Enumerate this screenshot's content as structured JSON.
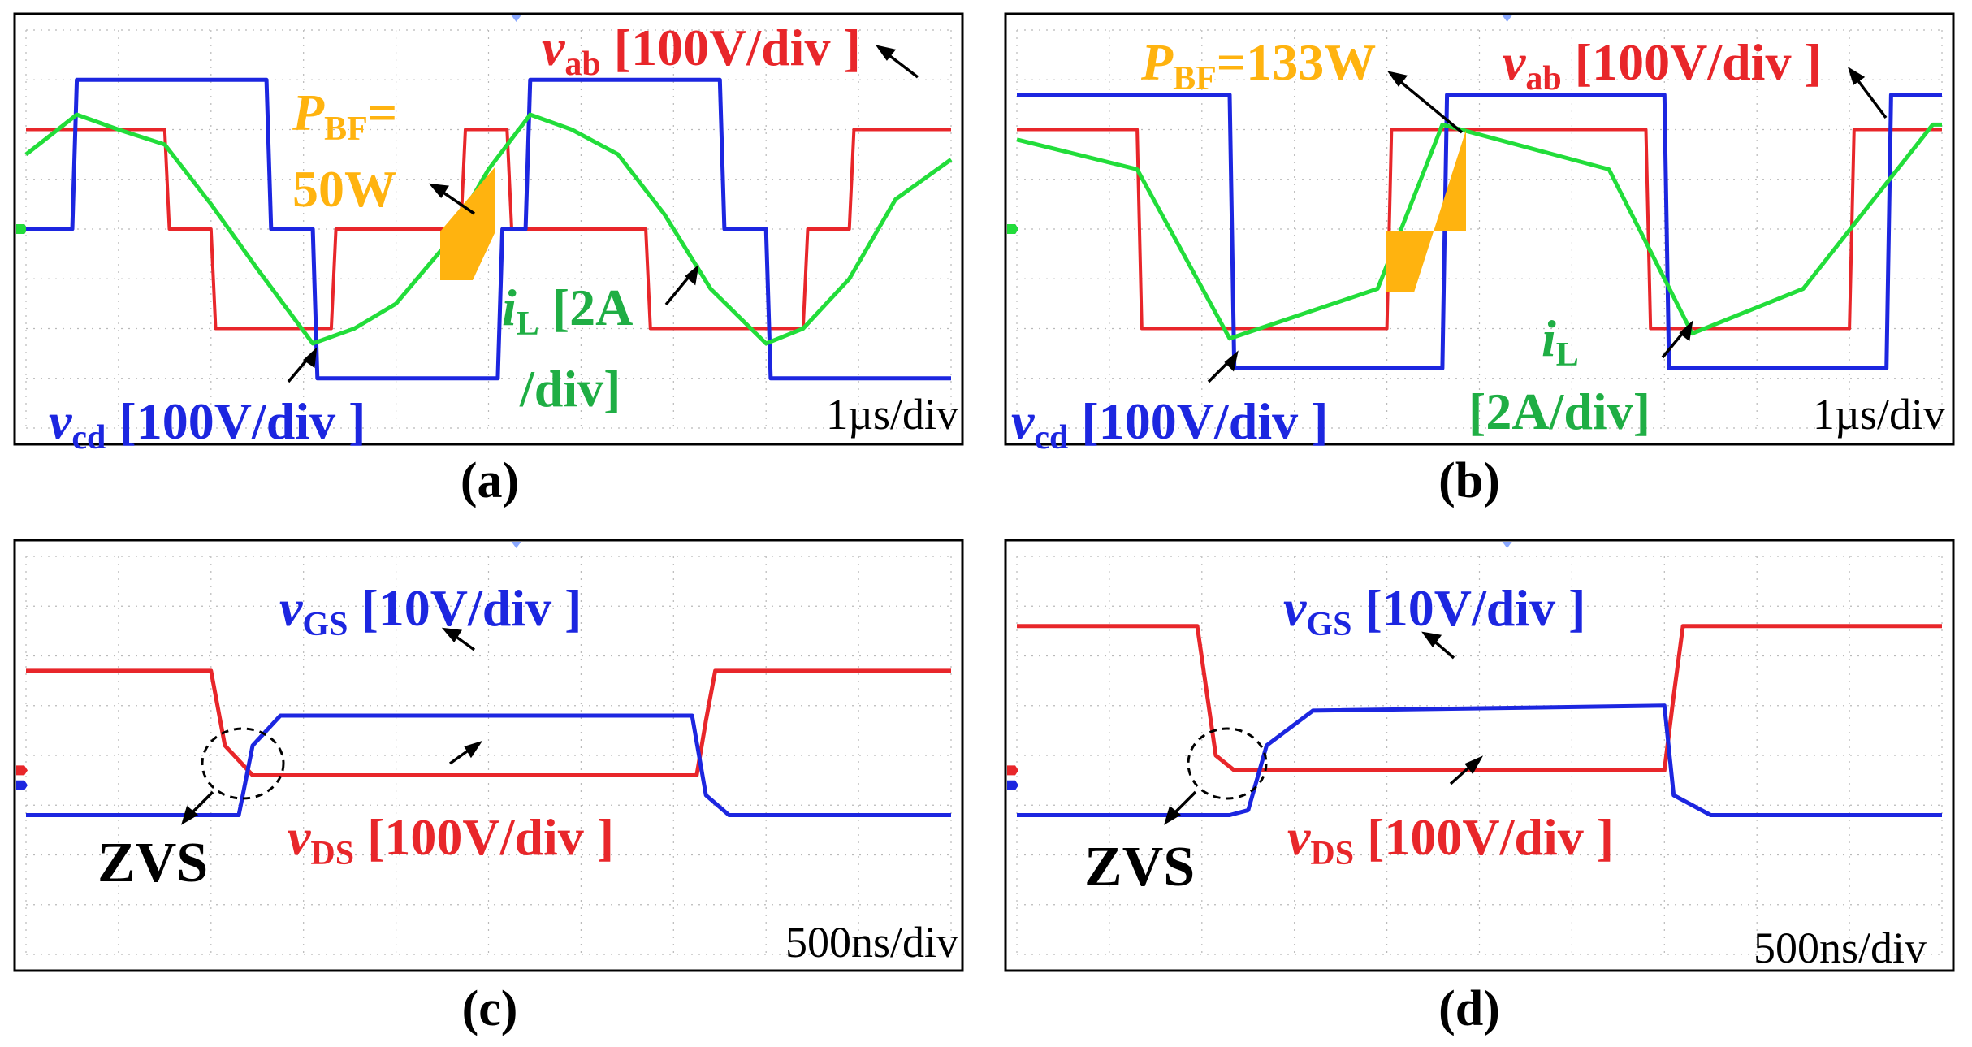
{
  "colors": {
    "vab": "#e8262a",
    "vcd": "#1c26e0",
    "iL": "#22dd3a",
    "iL_text": "#1fae44",
    "pbf": "#ffb30f",
    "black": "#000000",
    "grid": "#b9b9b9"
  },
  "panels": {
    "a": {
      "caption": "(a)",
      "timebase": "1µs/div",
      "vab_label": {
        "sym": "v",
        "sub": "ab",
        "scale": " [100V/div ]"
      },
      "vcd_label": {
        "sym": "v",
        "sub": "cd",
        "scale": " [100V/div ]"
      },
      "iL_label": {
        "sym": "i",
        "sub": "L",
        "scale": " [2A",
        "scale2": "/div]"
      },
      "pbf_label": {
        "sym": "P",
        "sub": "BF",
        "eq": "=",
        "value": "50W"
      }
    },
    "b": {
      "caption": "(b)",
      "timebase": "1µs/div",
      "vab_label": {
        "sym": "v",
        "sub": "ab",
        "scale": " [100V/div ]"
      },
      "vcd_label": {
        "sym": "v",
        "sub": "cd",
        "scale": " [100V/div ]"
      },
      "iL_label": {
        "sym": "i",
        "sub": "L",
        "scale": "[2A/div]"
      },
      "pbf_label": {
        "sym": "P",
        "sub": "BF",
        "value": "=133W"
      }
    },
    "c": {
      "caption": "(c)",
      "timebase": "500ns/div",
      "vgs_label": {
        "sym": "v",
        "sub": "GS",
        "scale": " [10V/div ]"
      },
      "vds_label": {
        "sym": "v",
        "sub": "DS",
        "scale": " [100V/div ]"
      },
      "zvs_label": "ZVS"
    },
    "d": {
      "caption": "(d)",
      "timebase": "500ns/div",
      "vgs_label": {
        "sym": "v",
        "sub": "GS",
        "scale": " [10V/div ]"
      },
      "vds_label": {
        "sym": "v",
        "sub": "DS",
        "scale": " [100V/div ]"
      },
      "zvs_label": "ZVS"
    }
  },
  "chart_data": [
    {
      "panel": "a",
      "type": "line",
      "title": "(a)",
      "x_unit": "µs",
      "x_scale_per_div": 1,
      "xlim": [
        0,
        10
      ],
      "ylim_div": [
        -4,
        4
      ],
      "series": [
        {
          "name": "v_ab",
          "unit": "V",
          "scale_per_div": 100,
          "x": [
            0,
            1.5,
            1.55,
            2.0,
            2.05,
            3.3,
            3.35,
            4.7,
            4.75,
            5.2,
            5.25,
            6.7,
            6.75,
            8.4,
            8.45,
            8.9,
            8.95,
            10
          ],
          "y": [
            2,
            2,
            0,
            0,
            -2,
            -2,
            0,
            0,
            2,
            2,
            0,
            0,
            -2,
            -2,
            0,
            0,
            2,
            2
          ]
        },
        {
          "name": "v_cd",
          "unit": "V",
          "scale_per_div": 100,
          "x": [
            0,
            0.5,
            0.55,
            2.6,
            2.65,
            3.1,
            3.15,
            5.1,
            5.15,
            5.4,
            5.45,
            7.5,
            7.55,
            8.0,
            8.05,
            10
          ],
          "y": [
            0,
            0,
            3,
            3,
            0,
            0,
            -3,
            -3,
            0,
            0,
            3,
            3,
            0,
            0,
            -3,
            -3
          ]
        },
        {
          "name": "i_L",
          "unit": "A",
          "scale_per_div": 2,
          "x": [
            0,
            0.55,
            1.0,
            1.5,
            2.0,
            2.5,
            3.1,
            3.55,
            4.0,
            4.5,
            5.0,
            5.45,
            5.9,
            6.4,
            6.9,
            7.4,
            8.0,
            8.4,
            8.9,
            9.4,
            10
          ],
          "y": [
            1.5,
            2.3,
            2.0,
            1.7,
            0.5,
            -0.8,
            -2.3,
            -2.0,
            -1.5,
            -0.4,
            1.2,
            2.3,
            2.0,
            1.5,
            0.3,
            -1.2,
            -2.3,
            -2.0,
            -1.0,
            0.6,
            1.4
          ]
        }
      ],
      "annotations": [
        "P_BF=50W",
        "v_ab [100V/div ]",
        "v_cd [100V/div ]",
        "i_L [2A /div]",
        "1µs/div"
      ]
    },
    {
      "panel": "b",
      "type": "line",
      "title": "(b)",
      "x_unit": "µs",
      "x_scale_per_div": 1,
      "xlim": [
        0,
        10
      ],
      "ylim_div": [
        -4,
        4
      ],
      "series": [
        {
          "name": "v_ab",
          "unit": "V",
          "scale_per_div": 100,
          "x": [
            0,
            1.3,
            1.35,
            4.0,
            4.05,
            6.8,
            6.85,
            9.0,
            9.05,
            10
          ],
          "y": [
            2,
            2,
            -2,
            -2,
            2,
            2,
            -2,
            -2,
            2,
            2
          ]
        },
        {
          "name": "v_cd",
          "unit": "V",
          "scale_per_div": 100,
          "x": [
            0,
            2.3,
            2.35,
            4.6,
            4.65,
            7.0,
            7.05,
            9.4,
            9.45,
            10
          ],
          "y": [
            2.7,
            2.7,
            -2.8,
            -2.8,
            2.7,
            2.7,
            -2.8,
            -2.8,
            2.7,
            2.7
          ]
        },
        {
          "name": "i_L",
          "unit": "A",
          "scale_per_div": 2,
          "x": [
            0,
            1.3,
            2.3,
            3.9,
            4.6,
            6.4,
            7.3,
            8.5,
            9.9,
            10
          ],
          "y": [
            1.8,
            1.2,
            -2.2,
            -1.2,
            2.1,
            1.2,
            -2.1,
            -1.2,
            2.1,
            2.1
          ]
        }
      ],
      "annotations": [
        "P_BF=133W",
        "v_ab [100V/div ]",
        "v_cd [100V/div ]",
        "i_L [2A/div]",
        "1µs/div"
      ]
    },
    {
      "panel": "c",
      "type": "line",
      "title": "(c)",
      "x_unit": "ns",
      "x_scale_per_div": 500,
      "xlim": [
        0,
        10
      ],
      "ylim_div": [
        -4,
        4
      ],
      "series": [
        {
          "name": "v_DS",
          "unit": "V",
          "scale_per_div": 100,
          "x": [
            0,
            2.0,
            2.15,
            2.45,
            7.2,
            7.25,
            7.35,
            7.45,
            10
          ],
          "y": [
            2.0,
            2.0,
            0.5,
            -0.1,
            -0.1,
            -0.1,
            1.0,
            2.0,
            2.0
          ]
        },
        {
          "name": "v_GS",
          "unit": "V",
          "scale_per_div": 10,
          "x": [
            0,
            2.3,
            2.45,
            2.75,
            7.2,
            7.35,
            7.6,
            10
          ],
          "y": [
            -0.6,
            -0.6,
            0.8,
            1.4,
            1.4,
            -0.2,
            -0.6,
            -0.6
          ]
        }
      ],
      "annotations": [
        "ZVS",
        "v_GS [10V/div ]",
        "v_DS [100V/div ]",
        "500ns/div"
      ]
    },
    {
      "panel": "d",
      "type": "line",
      "title": "(d)",
      "x_unit": "ns",
      "x_scale_per_div": 500,
      "xlim": [
        0,
        10
      ],
      "ylim_div": [
        -4,
        4
      ],
      "series": [
        {
          "name": "v_DS",
          "unit": "V",
          "scale_per_div": 100,
          "x": [
            0,
            1.95,
            2.15,
            2.35,
            7.0,
            7.1,
            7.2,
            10
          ],
          "y": [
            2.9,
            2.9,
            0.3,
            0.0,
            0.0,
            1.5,
            2.9,
            2.9
          ]
        },
        {
          "name": "v_GS",
          "unit": "V",
          "scale_per_div": 10,
          "x": [
            0,
            2.3,
            2.5,
            2.7,
            3.2,
            7.0,
            7.1,
            7.5,
            10
          ],
          "y": [
            -0.6,
            -0.6,
            -0.5,
            0.8,
            1.5,
            1.6,
            -0.2,
            -0.6,
            -0.6
          ]
        }
      ],
      "annotations": [
        "ZVS",
        "v_GS [10V/div ]",
        "v_DS [100V/div ]",
        "500ns/div"
      ]
    }
  ]
}
